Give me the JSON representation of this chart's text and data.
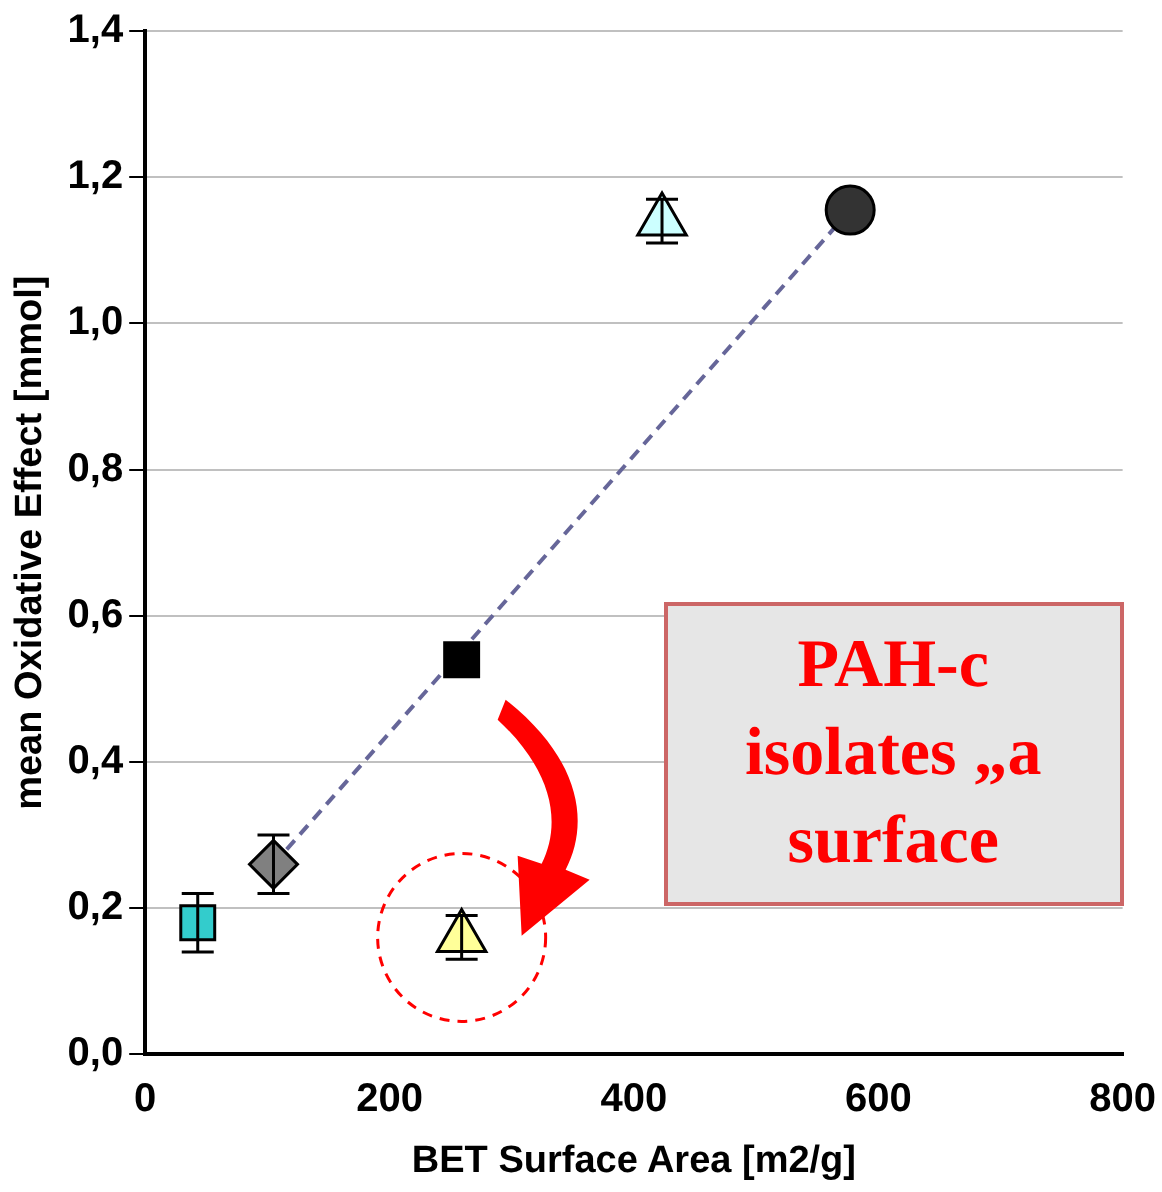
{
  "chart_data": {
    "type": "scatter",
    "xlabel": "BET Surface Area [m2/g]",
    "ylabel": "mean Oxidative Effect [mmol]",
    "xlim": [
      0,
      800
    ],
    "xticks": [
      0,
      200,
      400,
      600,
      800
    ],
    "ylim": [
      0,
      1.4
    ],
    "yticks": [
      {
        "value": 0,
        "label": "0,0"
      },
      {
        "value": 0.2,
        "label": "0,2"
      },
      {
        "value": 0.4,
        "label": "0,4"
      },
      {
        "value": 0.6,
        "label": "0,6"
      },
      {
        "value": 0.8,
        "label": "0,8"
      },
      {
        "value": 1.0,
        "label": "1,0"
      },
      {
        "value": 1.2,
        "label": "1,2"
      },
      {
        "value": 1.4,
        "label": "1,4"
      }
    ],
    "grid": "y",
    "legend": false,
    "series": [
      {
        "type": "scatter",
        "x": [
          43
        ],
        "values": [
          0.18
        ],
        "errors": [
          [
            0.14,
            0.22
          ]
        ],
        "color": "#33cccc",
        "marker": "square"
      },
      {
        "type": "scatter",
        "x": [
          105
        ],
        "values": [
          0.26
        ],
        "errors": [
          [
            0.22,
            0.3
          ]
        ],
        "color": "#808080",
        "marker": "diamond"
      },
      {
        "type": "scatter",
        "x": [
          259
        ],
        "values": [
          0.54
        ],
        "color": "#000000",
        "marker": "square"
      },
      {
        "type": "scatter",
        "x": [
          259
        ],
        "values": [
          0.16
        ],
        "errors": [
          [
            0.13,
            0.19
          ]
        ],
        "color": "#ffff99",
        "marker": "triangle"
      },
      {
        "type": "scatter",
        "x": [
          423
        ],
        "values": [
          1.14
        ],
        "errors": [
          [
            1.11,
            1.17
          ]
        ],
        "color": "#ccffff",
        "marker": "triangle"
      },
      {
        "type": "scatter",
        "x": [
          577
        ],
        "values": [
          1.155
        ],
        "color": "#333333",
        "marker": "circle"
      },
      {
        "type": "line",
        "x": [
          105,
          577
        ],
        "values": [
          0.26,
          1.155
        ],
        "color": "#666699",
        "line_style": "dashed",
        "marker": "none"
      }
    ],
    "annotations": [
      "PAH-c",
      "isolates „a",
      "surface"
    ]
  }
}
